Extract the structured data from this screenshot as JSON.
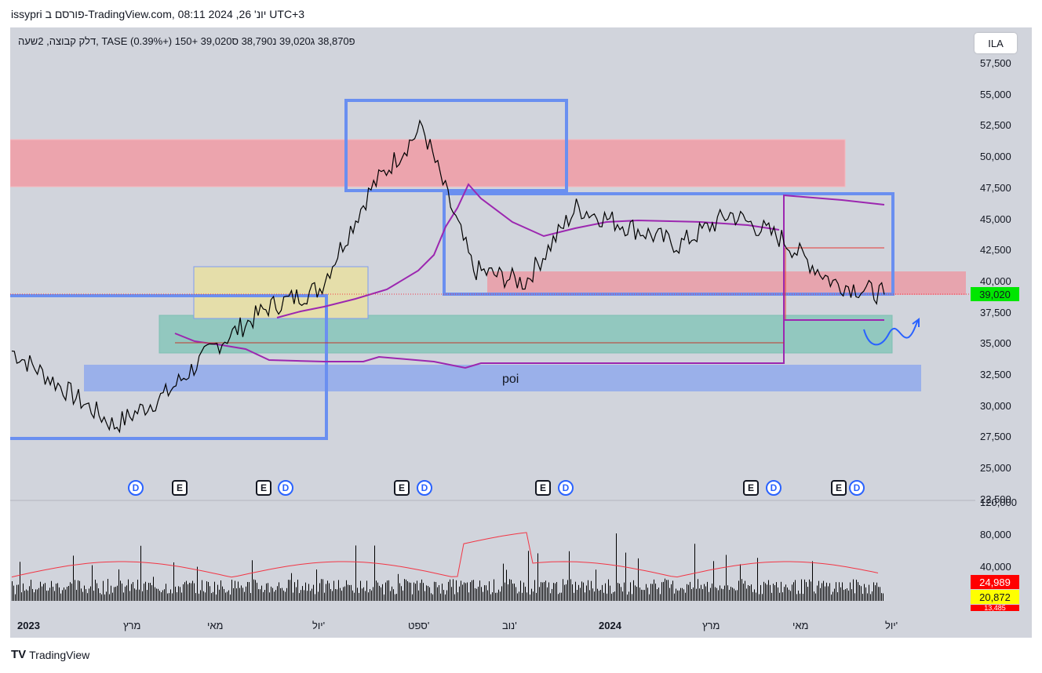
{
  "header": {
    "title": "issypri פורסם ב-TradingView.com, יונ' 26, 2024 08:11 UTC+3"
  },
  "legend": {
    "text": "דלק קבוצה, 2שעה, TASE  פ38,870  ג39,020  נ38,790  ס39,020  +150 (+0.39%)"
  },
  "currency": "ILA",
  "price_axis": {
    "ticks": [
      "57,500",
      "55,000",
      "52,500",
      "50,000",
      "47,500",
      "45,000",
      "42,500",
      "40,000",
      "37,500",
      "35,000",
      "32,500",
      "30,000",
      "27,500",
      "25,000",
      "22,500"
    ],
    "current_price_label": "39,020",
    "current_price_color": "#00e600"
  },
  "volume_axis": {
    "ticks": [
      "120,000",
      "80,000",
      "40,000"
    ],
    "tag_red": "24,989",
    "tag_yellow": "20,872",
    "tag_red2": "13,485"
  },
  "time_axis": {
    "ticks": [
      "2023",
      "מרץ",
      "מאי",
      "יול'",
      "ספט'",
      "נוב'",
      "2024",
      "מרץ",
      "מאי",
      "יול'"
    ]
  },
  "events": [
    {
      "type": "D"
    },
    {
      "type": "E"
    },
    {
      "type": "E"
    },
    {
      "type": "D"
    },
    {
      "type": "E"
    },
    {
      "type": "D"
    },
    {
      "type": "E"
    },
    {
      "type": "D"
    },
    {
      "type": "E"
    },
    {
      "type": "D"
    },
    {
      "type": "E"
    },
    {
      "type": "D"
    }
  ],
  "annotation": {
    "poi_label": "poi"
  },
  "footer": {
    "brand": "TradingView"
  },
  "colors": {
    "price_line": "#000000",
    "vwap": "#9c27b0",
    "volume_ma": "#f23645",
    "zone_red": "#f08080",
    "zone_blue": "#6a8ff0",
    "zone_green": "#4db6ac",
    "zone_yellow": "#fff59d"
  },
  "chart_data": {
    "type": "line",
    "ylim": [
      22500,
      57500
    ],
    "series": [
      {
        "name": "",
        "x": [
          "2023-01",
          "2023-02",
          "2023-03",
          "2023-04",
          "2023-05",
          "2023-06",
          "2023-07",
          "2023-08",
          "2023-09",
          "2023-10",
          "2023-11",
          "2023-12",
          "2024-01",
          "2024-02",
          "2024-03",
          "2024-04",
          "2024-05",
          "2024-06"
        ],
        "values": [
          34500,
          31500,
          28500,
          31000,
          35000,
          38000,
          39500,
          47500,
          52500,
          41000,
          40000,
          46000,
          44500,
          43000,
          45500,
          43500,
          40000,
          39020
        ]
      }
    ]
  }
}
